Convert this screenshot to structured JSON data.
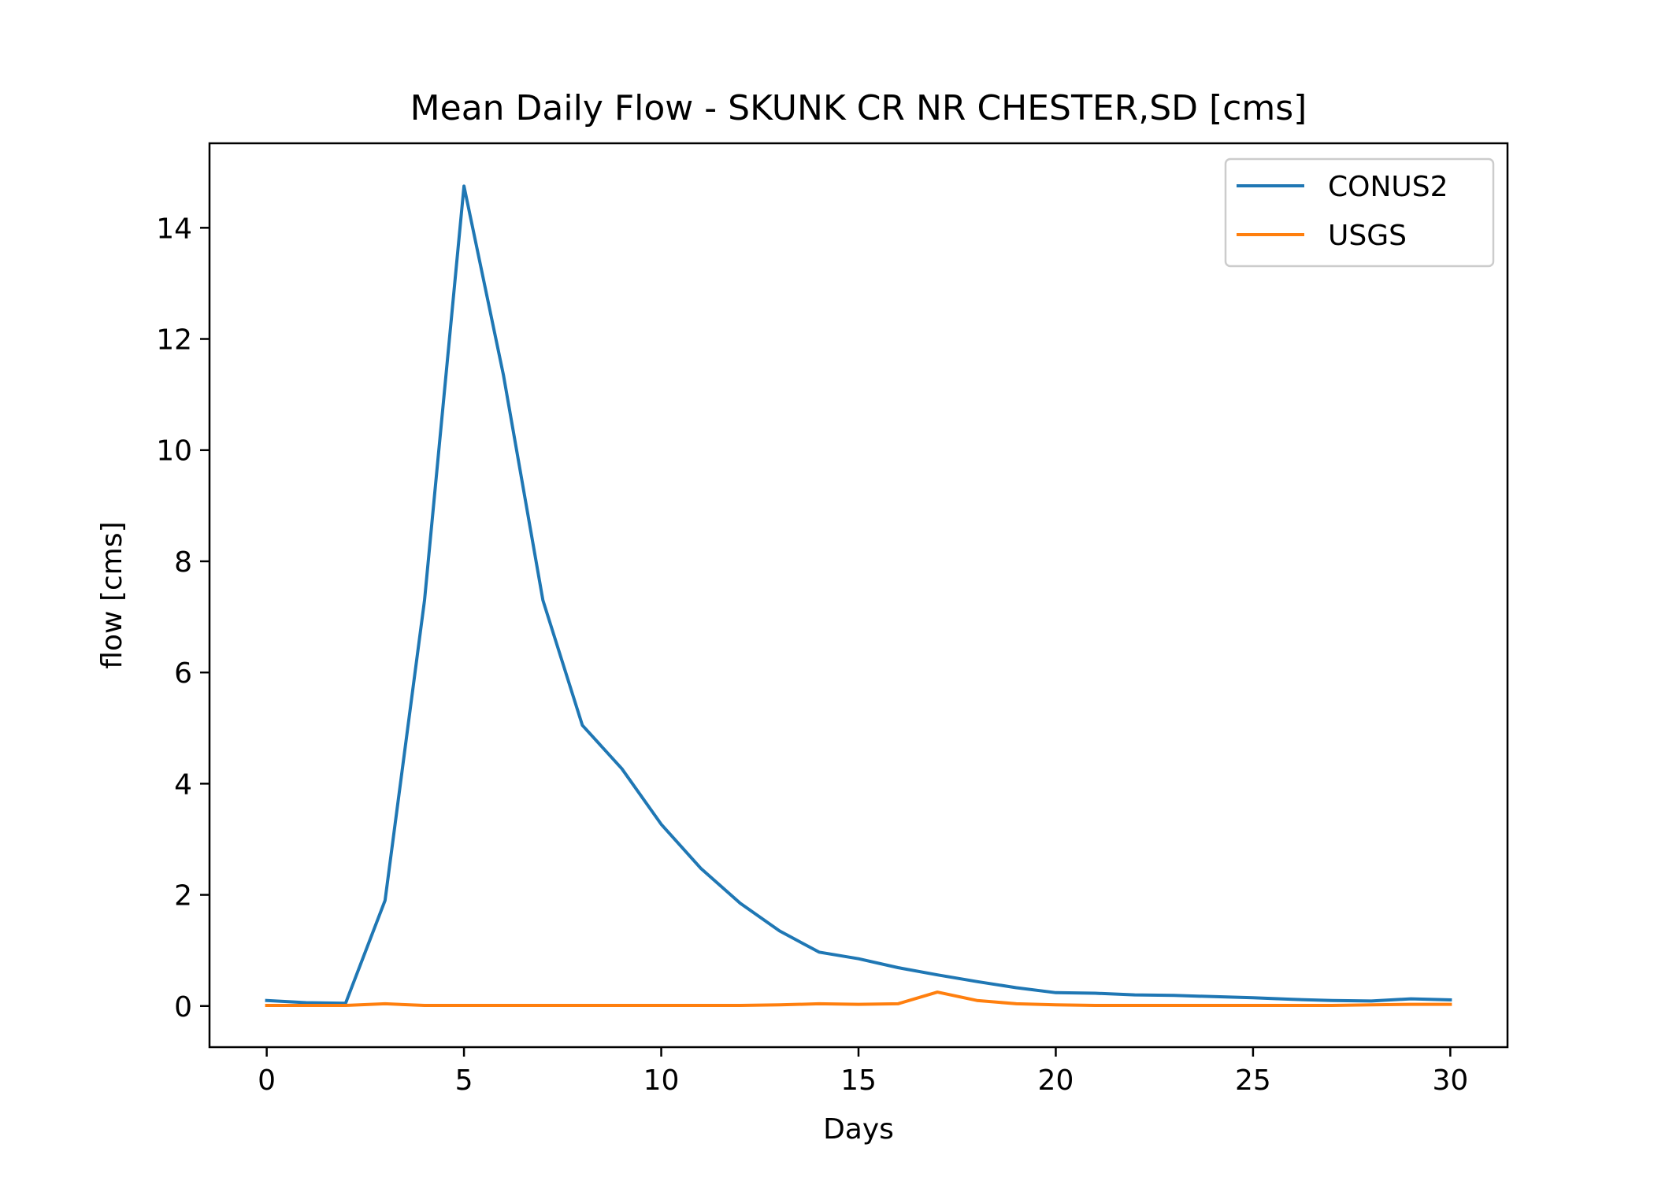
{
  "chart_data": {
    "type": "line",
    "title": "Mean Daily Flow - SKUNK CR NR CHESTER,SD [cms]",
    "xlabel": "Days",
    "ylabel": "flow [cms]",
    "xlim": [
      -1.45,
      31.45
    ],
    "ylim": [
      -0.74,
      15.52
    ],
    "xticks": [
      0,
      5,
      10,
      15,
      20,
      25,
      30
    ],
    "xtick_labels": [
      "0",
      "5",
      "10",
      "15",
      "20",
      "25",
      "30"
    ],
    "yticks": [
      0,
      2,
      4,
      6,
      8,
      10,
      12,
      14
    ],
    "ytick_labels": [
      "0",
      "2",
      "4",
      "6",
      "8",
      "10",
      "12",
      "14"
    ],
    "grid": false,
    "legend_position": "top-right",
    "x": [
      0,
      1,
      2,
      3,
      4,
      5,
      6,
      7,
      8,
      9,
      10,
      11,
      12,
      13,
      14,
      15,
      16,
      17,
      18,
      19,
      20,
      21,
      22,
      23,
      24,
      25,
      26,
      27,
      28,
      29,
      30
    ],
    "series": [
      {
        "name": "CONUS2",
        "color": "#1f77b4",
        "values": [
          0.1,
          0.06,
          0.05,
          1.9,
          7.3,
          14.75,
          11.35,
          7.3,
          5.05,
          4.27,
          3.27,
          2.48,
          1.85,
          1.35,
          0.97,
          0.85,
          0.69,
          0.56,
          0.44,
          0.33,
          0.24,
          0.23,
          0.2,
          0.19,
          0.17,
          0.15,
          0.12,
          0.1,
          0.09,
          0.13,
          0.11
        ]
      },
      {
        "name": "USGS",
        "color": "#ff7f0e",
        "values": [
          0.01,
          0.01,
          0.01,
          0.04,
          0.01,
          0.01,
          0.01,
          0.01,
          0.01,
          0.01,
          0.01,
          0.01,
          0.01,
          0.02,
          0.04,
          0.03,
          0.04,
          0.25,
          0.1,
          0.04,
          0.02,
          0.01,
          0.01,
          0.01,
          0.01,
          0.01,
          0.01,
          0.01,
          0.02,
          0.03,
          0.03
        ]
      }
    ]
  }
}
